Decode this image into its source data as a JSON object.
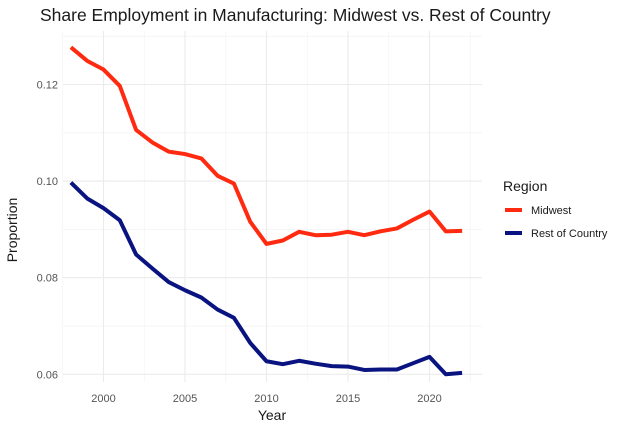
{
  "chart_data": {
    "type": "line",
    "title": "Share Employment in Manufacturing: Midwest vs. Rest of Country",
    "xlabel": "Year",
    "ylabel": "Proportion",
    "x": [
      1998,
      1999,
      2000,
      2001,
      2002,
      2003,
      2004,
      2005,
      2006,
      2007,
      2008,
      2009,
      2010,
      2011,
      2012,
      2013,
      2014,
      2015,
      2016,
      2017,
      2018,
      2019,
      2020,
      2021,
      2022
    ],
    "series": [
      {
        "name": "Midwest",
        "color": "#FF2A0F",
        "values": [
          0.1277,
          0.1249,
          0.1231,
          0.1197,
          0.1106,
          0.108,
          0.1061,
          0.1056,
          0.1047,
          0.1011,
          0.0995,
          0.0916,
          0.087,
          0.0877,
          0.0895,
          0.0888,
          0.0889,
          0.0895,
          0.0888,
          0.0896,
          0.0902,
          0.092,
          0.0937,
          0.0896,
          0.0897
        ]
      },
      {
        "name": "Rest of Country",
        "color": "#0A1480",
        "values": [
          0.0997,
          0.0964,
          0.0944,
          0.0919,
          0.0848,
          0.0819,
          0.0791,
          0.0774,
          0.0759,
          0.0734,
          0.0717,
          0.0665,
          0.0627,
          0.0621,
          0.0628,
          0.0622,
          0.0617,
          0.0616,
          0.0609,
          0.061,
          0.061,
          0.0623,
          0.0636,
          0.06,
          0.0603
        ]
      }
    ],
    "xlim": [
      1997.4,
      2022.6
    ],
    "ylim": [
      0.0565,
      0.1317
    ],
    "x_ticks": [
      2000,
      2005,
      2010,
      2015,
      2020
    ],
    "x_tick_labels": [
      "2000",
      "2005",
      "2010",
      "2015",
      "2020"
    ],
    "x_minor_ticks": [
      1997.5,
      2002.5,
      2007.5,
      2012.5,
      2017.5,
      2022.5
    ],
    "y_ticks": [
      0.06,
      0.08,
      0.1,
      0.12
    ],
    "y_tick_labels": [
      "0.06",
      "0.08",
      "0.10",
      "0.12"
    ],
    "y_minor_ticks": [
      0.07,
      0.09,
      0.11,
      0.13
    ],
    "grid": true,
    "legend": {
      "title": "Region",
      "position": "right",
      "entries": [
        "Midwest",
        "Rest of Country"
      ]
    }
  }
}
